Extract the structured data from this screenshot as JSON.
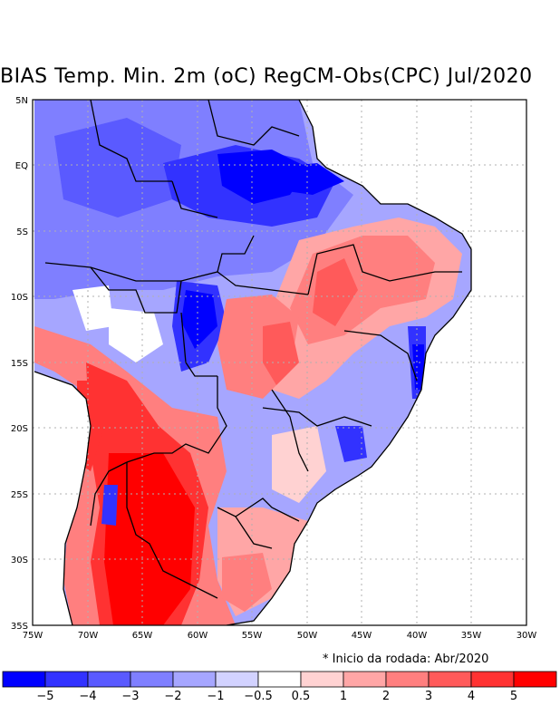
{
  "title": "BIAS Temp. Min. 2m (oC) RegCM-Obs(CPC) Jul/2020",
  "footnote": "* Inicio da rodada: Abr/2020",
  "lon_labels": [
    "75W",
    "70W",
    "65W",
    "60W",
    "55W",
    "50W",
    "45W",
    "40W",
    "35W",
    "30W"
  ],
  "lat_labels": [
    "5N",
    "EQ",
    "5S",
    "10S",
    "15S",
    "20S",
    "25S",
    "30S",
    "35S"
  ],
  "colorbar": {
    "colors": [
      "#0000ff",
      "#3232ff",
      "#5a5aff",
      "#7f7fff",
      "#a6a6ff",
      "#d2d2ff",
      "#ffffff",
      "#ffd2d2",
      "#ffa6a6",
      "#ff7f7f",
      "#ff5a5a",
      "#ff3232",
      "#ff0000"
    ],
    "labels": [
      "−5",
      "−4",
      "−3",
      "−2",
      "−1",
      "−0.5",
      "0.5",
      "1",
      "2",
      "3",
      "4",
      "5"
    ]
  }
}
